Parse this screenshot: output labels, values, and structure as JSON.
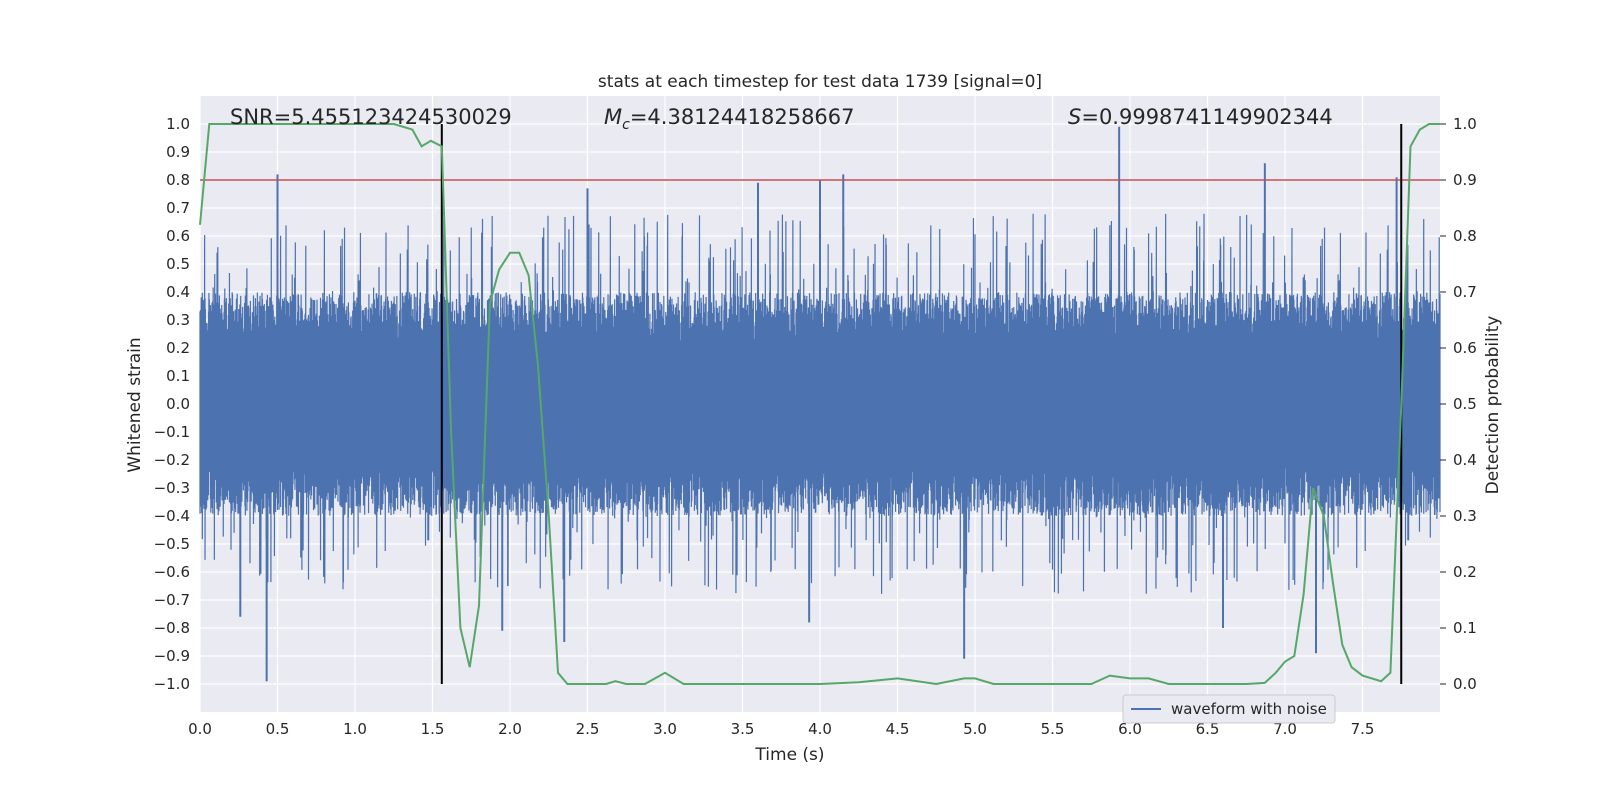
{
  "chart_data": {
    "type": "line",
    "title": "stats at each timestep for test data 1739 [signal=0]",
    "xlabel": "Time (s)",
    "ylabel": "Whitened strain",
    "y2label": "Detection probability",
    "xlim": [
      0.0,
      8.0
    ],
    "ylim": [
      -1.1,
      1.1
    ],
    "y2lim": [
      -0.05,
      1.05
    ],
    "xticks": [
      "0.0",
      "0.5",
      "1.0",
      "1.5",
      "2.0",
      "2.5",
      "3.0",
      "3.5",
      "4.0",
      "4.5",
      "5.0",
      "5.5",
      "6.0",
      "6.5",
      "7.0",
      "7.5"
    ],
    "yticks": [
      "1.0",
      "0.9",
      "0.8",
      "0.7",
      "0.6",
      "0.5",
      "0.4",
      "0.3",
      "0.2",
      "0.1",
      "0.0",
      "−0.1",
      "−0.2",
      "−0.3",
      "−0.4",
      "−0.5",
      "−0.6",
      "−0.7",
      "−0.8",
      "−0.9",
      "−1.0"
    ],
    "y2ticks": [
      "1.0",
      "0.9",
      "0.8",
      "0.7",
      "0.6",
      "0.5",
      "0.4",
      "0.3",
      "0.2",
      "0.1",
      "0.0"
    ],
    "grid": true,
    "legend_position": "lower-right",
    "annotations": {
      "snr": "SNR=5.455123424530029",
      "mc_symbol": "M",
      "mc_sub": "c",
      "mc_value": "=4.38124418258667",
      "s_symbol": "S",
      "s_value": "=0.9998741149902344"
    },
    "threshold_line": {
      "y2": 0.9,
      "color": "#c44e52"
    },
    "vertical_markers": [
      1.56,
      7.75
    ],
    "series": [
      {
        "name": "waveform with noise",
        "axis": "left",
        "kind": "noise",
        "color": "#4c72b0",
        "x_range": [
          0.0,
          8.0
        ],
        "typical_envelope": [
          -0.4,
          0.4
        ],
        "peaks": [
          {
            "x": 0.5,
            "y": 0.82
          },
          {
            "x": 2.5,
            "y": 0.77
          },
          {
            "x": 3.6,
            "y": 0.79
          },
          {
            "x": 4.0,
            "y": 0.8
          },
          {
            "x": 4.15,
            "y": 0.82
          },
          {
            "x": 5.93,
            "y": 0.99
          },
          {
            "x": 6.87,
            "y": 0.86
          },
          {
            "x": 7.72,
            "y": 0.81
          }
        ],
        "troughs": [
          {
            "x": 0.43,
            "y": -0.99
          },
          {
            "x": 0.26,
            "y": -0.76
          },
          {
            "x": 1.95,
            "y": -0.81
          },
          {
            "x": 2.35,
            "y": -0.85
          },
          {
            "x": 3.93,
            "y": -0.78
          },
          {
            "x": 4.93,
            "y": -0.91
          },
          {
            "x": 6.6,
            "y": -0.8
          },
          {
            "x": 7.2,
            "y": -0.89
          }
        ]
      },
      {
        "name": "detection probability",
        "axis": "right",
        "kind": "line",
        "color": "#55a868",
        "x": [
          0.0,
          0.06,
          0.12,
          0.25,
          0.5,
          0.75,
          1.0,
          1.25,
          1.37,
          1.43,
          1.49,
          1.56,
          1.62,
          1.68,
          1.74,
          1.8,
          1.87,
          1.93,
          2.0,
          2.06,
          2.12,
          2.18,
          2.25,
          2.31,
          2.37,
          2.5,
          2.62,
          2.68,
          2.75,
          2.87,
          3.0,
          3.12,
          3.25,
          3.5,
          3.75,
          4.0,
          4.25,
          4.5,
          4.75,
          4.93,
          5.0,
          5.12,
          5.25,
          5.5,
          5.75,
          5.87,
          6.0,
          6.12,
          6.25,
          6.5,
          6.75,
          6.87,
          6.94,
          7.0,
          7.06,
          7.12,
          7.18,
          7.25,
          7.31,
          7.37,
          7.43,
          7.5,
          7.62,
          7.68,
          7.75,
          7.81,
          7.87,
          7.93,
          8.0
        ],
        "values": [
          0.82,
          1.0,
          1.0,
          1.0,
          1.0,
          1.0,
          1.0,
          1.0,
          0.99,
          0.96,
          0.97,
          0.96,
          0.45,
          0.1,
          0.03,
          0.14,
          0.68,
          0.74,
          0.77,
          0.77,
          0.73,
          0.57,
          0.3,
          0.02,
          0.0,
          0.0,
          0.0,
          0.005,
          0.0,
          0.0,
          0.02,
          0.0,
          0.0,
          0.0,
          0.0,
          0.0,
          0.003,
          0.01,
          0.0,
          0.01,
          0.01,
          0.0,
          0.0,
          0.0,
          0.0,
          0.015,
          0.01,
          0.01,
          0.0,
          0.0,
          0.0,
          0.002,
          0.02,
          0.04,
          0.05,
          0.16,
          0.35,
          0.3,
          0.18,
          0.07,
          0.03,
          0.015,
          0.005,
          0.02,
          0.5,
          0.96,
          0.99,
          1.0,
          1.0
        ]
      }
    ]
  },
  "colors": {
    "background": "#eaeaf2",
    "grid": "#ffffff",
    "waveform": "#4c72b0",
    "probability": "#55a868",
    "threshold": "#c44e52",
    "marker": "#000000"
  }
}
